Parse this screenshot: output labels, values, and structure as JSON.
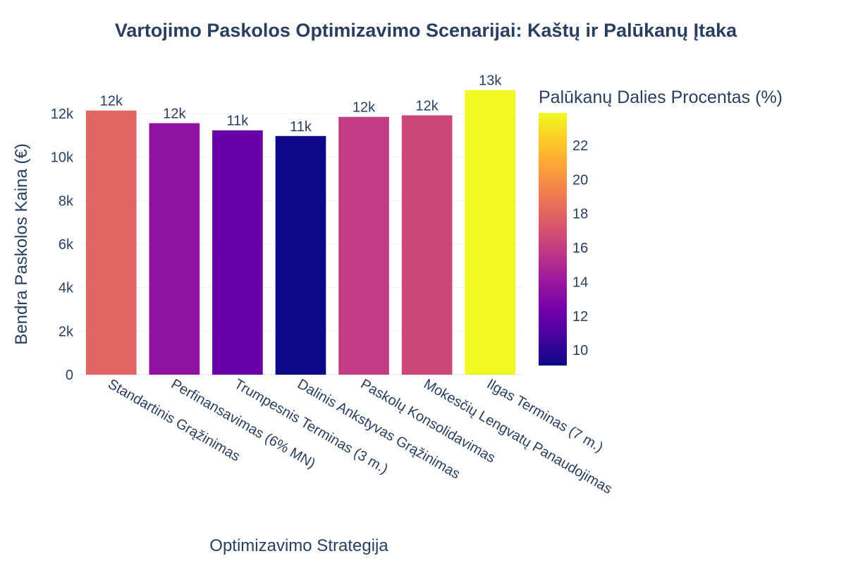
{
  "chart_data": {
    "type": "bar",
    "title": "Vartojimo Paskolos Optimizavimo Scenarijai: Kaštų ir Palūkanų Įtaka",
    "xlabel": "Optimizavimo Strategija",
    "ylabel": "Bendra Paskolos Kaina (€)",
    "categories": [
      "Standartinis Grąžinimas",
      "Perfinansavimas (6% MN)",
      "Trumpesnis Terminas (3 m.)",
      "Dalinis Ankstyvas Grąžinimas",
      "Paskolų Konsolidavimas",
      "Mokesčių Lengvatų Panaudojimas",
      "Ilgas Terminas (7 m.)"
    ],
    "values": [
      12140,
      11560,
      11230,
      10970,
      11850,
      11920,
      13080
    ],
    "data_labels": [
      "12k",
      "12k",
      "11k",
      "11k",
      "12k",
      "12k",
      "13k"
    ],
    "color_values": [
      18.0,
      13.6,
      12.0,
      9.1,
      16.0,
      16.5,
      23.9
    ],
    "ylim": [
      0,
      13500
    ],
    "y_ticks": [
      0,
      2000,
      4000,
      6000,
      8000,
      10000,
      12000
    ],
    "y_tick_labels": [
      "0",
      "2k",
      "4k",
      "6k",
      "8k",
      "10k",
      "12k"
    ],
    "grid": true,
    "colorbar": {
      "title": "Palūkanų Dalies Procentas (%)",
      "range": [
        9.1,
        23.9
      ],
      "ticks": [
        10,
        12,
        14,
        16,
        18,
        20,
        22
      ],
      "colorscale": "Plasma",
      "placement": "right"
    },
    "colors": {
      "plasma": [
        "#0d0887",
        "#46039f",
        "#7201a8",
        "#9c179e",
        "#bd3786",
        "#d8576b",
        "#ed7953",
        "#fb9f3a",
        "#fdca26",
        "#f0f921"
      ],
      "text": "#2a3f5f",
      "grid": "#ebf0f8"
    }
  }
}
